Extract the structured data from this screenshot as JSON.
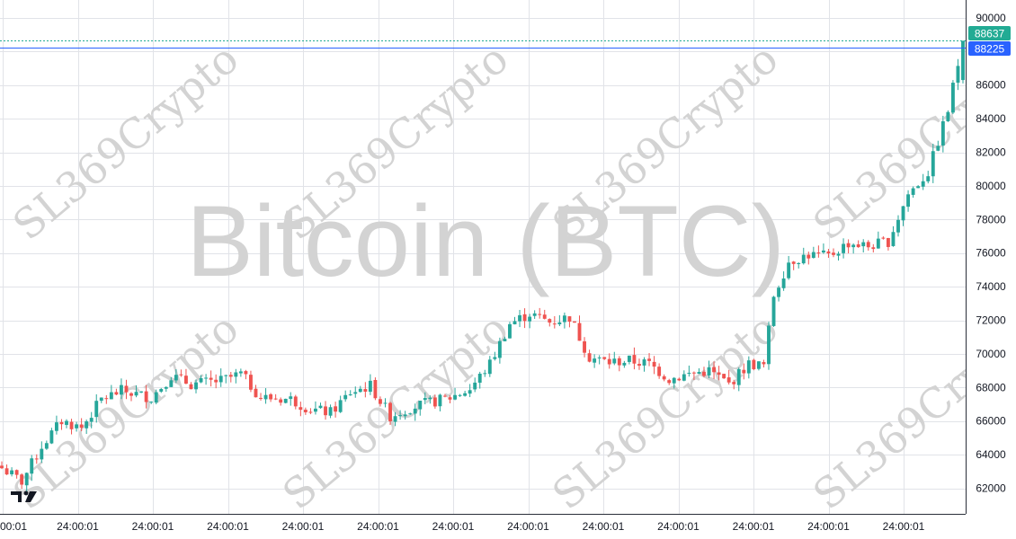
{
  "watermark": {
    "symbol_text": "Bitcoin (BTC)",
    "brand_text": "SL369Crypto"
  },
  "logo": {
    "text": "TV",
    "icon": "tradingview-logo-icon"
  },
  "colors": {
    "up": "#26a69a",
    "down": "#ef5350",
    "grid": "#e1e3e8",
    "axis_text": "#131722",
    "last_price_line": "#2962ff",
    "high_line": "#22ab94",
    "watermark": "#d3d3d3"
  },
  "price_tags": [
    {
      "label": "88637",
      "value": 88637,
      "color": "#22ab94",
      "line": "dashed"
    },
    {
      "label": "88225",
      "value": 88225,
      "color": "#2962ff",
      "line": "solid"
    }
  ],
  "chart_data": {
    "type": "candlestick",
    "title": "",
    "xlabel": "",
    "ylabel": "",
    "ylim": [
      60500,
      91000
    ],
    "grid": true,
    "y_ticks": [
      62000,
      64000,
      66000,
      68000,
      70000,
      72000,
      74000,
      76000,
      78000,
      80000,
      82000,
      84000,
      86000,
      88000,
      90000
    ],
    "y_tick_labels": [
      "62000",
      "64000",
      "66000",
      "68000",
      "70000",
      "72000",
      "74000",
      "76000",
      "78000",
      "80000",
      "82000",
      "84000",
      "86000",
      "88000",
      "90000"
    ],
    "x_tick_labels": [
      "00:01",
      "24:00:01",
      "24:00:01",
      "24:00:01",
      "24:00:01",
      "24:00:01",
      "24:00:01",
      "24:00:01",
      "24:00:01",
      "24:00:01",
      "24:00:01",
      "24:00:01",
      "24:00:01"
    ],
    "close_path": [
      {
        "i": 0,
        "v": 63200
      },
      {
        "i": 4,
        "v": 62400
      },
      {
        "i": 8,
        "v": 64500
      },
      {
        "i": 12,
        "v": 66000
      },
      {
        "i": 16,
        "v": 65600
      },
      {
        "i": 20,
        "v": 67300
      },
      {
        "i": 24,
        "v": 67800
      },
      {
        "i": 30,
        "v": 67400
      },
      {
        "i": 34,
        "v": 68700
      },
      {
        "i": 38,
        "v": 68200
      },
      {
        "i": 44,
        "v": 68400
      },
      {
        "i": 48,
        "v": 68800
      },
      {
        "i": 52,
        "v": 67400
      },
      {
        "i": 58,
        "v": 67300
      },
      {
        "i": 62,
        "v": 66700
      },
      {
        "i": 66,
        "v": 66500
      },
      {
        "i": 70,
        "v": 67700
      },
      {
        "i": 74,
        "v": 68100
      },
      {
        "i": 78,
        "v": 66300
      },
      {
        "i": 82,
        "v": 66800
      },
      {
        "i": 86,
        "v": 67100
      },
      {
        "i": 90,
        "v": 67400
      },
      {
        "i": 94,
        "v": 67900
      },
      {
        "i": 98,
        "v": 69400
      },
      {
        "i": 102,
        "v": 71800
      },
      {
        "i": 106,
        "v": 72400
      },
      {
        "i": 110,
        "v": 71900
      },
      {
        "i": 114,
        "v": 72200
      },
      {
        "i": 118,
        "v": 69800
      },
      {
        "i": 122,
        "v": 69500
      },
      {
        "i": 126,
        "v": 69600
      },
      {
        "i": 130,
        "v": 69400
      },
      {
        "i": 134,
        "v": 68500
      },
      {
        "i": 138,
        "v": 68800
      },
      {
        "i": 142,
        "v": 69000
      },
      {
        "i": 146,
        "v": 68200
      },
      {
        "i": 150,
        "v": 69400
      },
      {
        "i": 153,
        "v": 69300
      },
      {
        "i": 155,
        "v": 73500
      },
      {
        "i": 158,
        "v": 75500
      },
      {
        "i": 162,
        "v": 75900
      },
      {
        "i": 166,
        "v": 75800
      },
      {
        "i": 170,
        "v": 76600
      },
      {
        "i": 174,
        "v": 76400
      },
      {
        "i": 178,
        "v": 76700
      },
      {
        "i": 182,
        "v": 79500
      },
      {
        "i": 186,
        "v": 80800
      },
      {
        "i": 190,
        "v": 84500
      },
      {
        "i": 193,
        "v": 88637
      }
    ]
  }
}
